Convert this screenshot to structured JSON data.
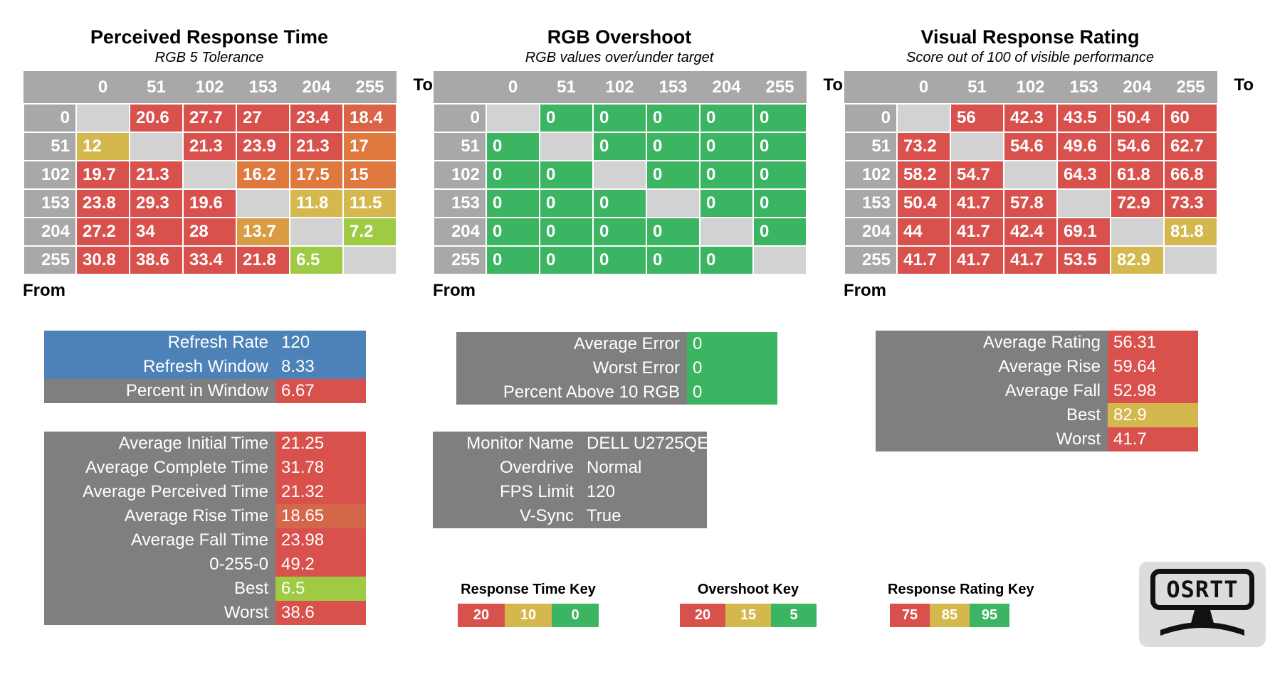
{
  "colors": {
    "red": "#d8514d",
    "redOrange": "#da6348",
    "orange": "#e0793e",
    "orangeGold": "#d99c44",
    "gold": "#d5b84d",
    "yellowGreen": "#9ecb43",
    "green": "#3cb563",
    "blue": "#4d82b8",
    "box_gray": "#7f7f7f",
    "header_gray": "#a8a8a8",
    "diag_gray": "#d2d2d2",
    "rise_red": "#d4664a"
  },
  "chart_data": [
    {
      "type": "heatmap",
      "title": "Perceived Response Time",
      "subtitle": "RGB 5 Tolerance",
      "to_label": "To",
      "from_label": "From",
      "categories": [
        "0",
        "51",
        "102",
        "153",
        "204",
        "255"
      ],
      "values": [
        [
          null,
          20.6,
          27.7,
          27,
          23.4,
          18.4
        ],
        [
          12,
          null,
          21.3,
          23.9,
          21.3,
          17
        ],
        [
          19.7,
          21.3,
          null,
          16.2,
          17.5,
          15
        ],
        [
          23.8,
          29.3,
          19.6,
          null,
          11.8,
          11.5
        ],
        [
          27.2,
          34,
          28,
          13.7,
          null,
          7.2
        ],
        [
          30.8,
          38.6,
          33.4,
          21.8,
          6.5,
          null
        ]
      ],
      "cell_colors": [
        [
          null,
          "red",
          "red",
          "red",
          "red",
          "redOrange"
        ],
        [
          "gold",
          null,
          "red",
          "red",
          "red",
          "orange"
        ],
        [
          "red",
          "red",
          null,
          "orange",
          "orange",
          "orange"
        ],
        [
          "red",
          "red",
          "red",
          null,
          "gold",
          "gold"
        ],
        [
          "red",
          "red",
          "red",
          "orangeGold",
          null,
          "yellowGreen"
        ],
        [
          "red",
          "red",
          "red",
          "red",
          "yellowGreen",
          null
        ]
      ]
    },
    {
      "type": "heatmap",
      "title": "RGB Overshoot",
      "subtitle": "RGB values over/under target",
      "to_label": "To",
      "from_label": "From",
      "categories": [
        "0",
        "51",
        "102",
        "153",
        "204",
        "255"
      ],
      "values": [
        [
          null,
          0,
          0,
          0,
          0,
          0
        ],
        [
          0,
          null,
          0,
          0,
          0,
          0
        ],
        [
          0,
          0,
          null,
          0,
          0,
          0
        ],
        [
          0,
          0,
          0,
          null,
          0,
          0
        ],
        [
          0,
          0,
          0,
          0,
          null,
          0
        ],
        [
          0,
          0,
          0,
          0,
          0,
          null
        ]
      ],
      "cell_colors": [
        [
          null,
          "green",
          "green",
          "green",
          "green",
          "green"
        ],
        [
          "green",
          null,
          "green",
          "green",
          "green",
          "green"
        ],
        [
          "green",
          "green",
          null,
          "green",
          "green",
          "green"
        ],
        [
          "green",
          "green",
          "green",
          null,
          "green",
          "green"
        ],
        [
          "green",
          "green",
          "green",
          "green",
          null,
          "green"
        ],
        [
          "green",
          "green",
          "green",
          "green",
          "green",
          null
        ]
      ]
    },
    {
      "type": "heatmap",
      "title": "Visual Response Rating",
      "subtitle": "Score out of 100 of visible performance",
      "to_label": "To",
      "from_label": "From",
      "categories": [
        "0",
        "51",
        "102",
        "153",
        "204",
        "255"
      ],
      "values": [
        [
          null,
          56,
          42.3,
          43.5,
          50.4,
          60
        ],
        [
          73.2,
          null,
          54.6,
          49.6,
          54.6,
          62.7
        ],
        [
          58.2,
          54.7,
          null,
          64.3,
          61.8,
          66.8
        ],
        [
          50.4,
          41.7,
          57.8,
          null,
          72.9,
          73.3
        ],
        [
          44,
          41.7,
          42.4,
          69.1,
          null,
          81.8
        ],
        [
          41.7,
          41.7,
          41.7,
          53.5,
          82.9,
          null
        ]
      ],
      "cell_colors": [
        [
          null,
          "red",
          "red",
          "red",
          "red",
          "red"
        ],
        [
          "red",
          null,
          "red",
          "red",
          "red",
          "red"
        ],
        [
          "red",
          "red",
          null,
          "red",
          "red",
          "red"
        ],
        [
          "red",
          "red",
          "red",
          null,
          "red",
          "red"
        ],
        [
          "red",
          "red",
          "red",
          "red",
          null,
          "gold"
        ],
        [
          "red",
          "red",
          "red",
          "red",
          "gold",
          null
        ]
      ]
    }
  ],
  "summary_boxes": {
    "performance": {
      "rows": [
        {
          "label": "Refresh Rate",
          "value": "120",
          "label_bg": "blue",
          "value_bg": "blue"
        },
        {
          "label": "Refresh Window",
          "value": "8.33",
          "label_bg": "blue",
          "value_bg": "blue"
        },
        {
          "label": "Percent in Window",
          "value": "6.67",
          "label_bg": "box_gray",
          "value_bg": "red"
        }
      ]
    },
    "times": {
      "rows": [
        {
          "label": "Average Initial Time",
          "value": "21.25",
          "label_bg": "box_gray",
          "value_bg": "red"
        },
        {
          "label": "Average Complete Time",
          "value": "31.78",
          "label_bg": "box_gray",
          "value_bg": "red"
        },
        {
          "label": "Average Perceived Time",
          "value": "21.32",
          "label_bg": "box_gray",
          "value_bg": "red"
        },
        {
          "label": "Average Rise Time",
          "value": "18.65",
          "label_bg": "box_gray",
          "value_bg": "rise_red"
        },
        {
          "label": "Average Fall Time",
          "value": "23.98",
          "label_bg": "box_gray",
          "value_bg": "red"
        },
        {
          "label": "0-255-0",
          "value": "49.2",
          "label_bg": "box_gray",
          "value_bg": "red"
        },
        {
          "label": "Best",
          "value": "6.5",
          "label_bg": "box_gray",
          "value_bg": "yellowGreen"
        },
        {
          "label": "Worst",
          "value": "38.6",
          "label_bg": "box_gray",
          "value_bg": "red"
        }
      ]
    },
    "overshoot": {
      "rows": [
        {
          "label": "Average Error",
          "value": "0",
          "label_bg": "box_gray",
          "value_bg": "green"
        },
        {
          "label": "Worst Error",
          "value": "0",
          "label_bg": "box_gray",
          "value_bg": "green"
        },
        {
          "label": "Percent Above 10 RGB",
          "value": "0",
          "label_bg": "box_gray",
          "value_bg": "green"
        }
      ]
    },
    "monitor": {
      "rows": [
        {
          "label": "Monitor Name",
          "value": "DELL U2725QE",
          "label_bg": "box_gray",
          "value_bg": "box_gray"
        },
        {
          "label": "Overdrive",
          "value": "Normal",
          "label_bg": "box_gray",
          "value_bg": "box_gray"
        },
        {
          "label": "FPS Limit",
          "value": "120",
          "label_bg": "box_gray",
          "value_bg": "box_gray"
        },
        {
          "label": "V-Sync",
          "value": "True",
          "label_bg": "box_gray",
          "value_bg": "box_gray"
        }
      ]
    },
    "rating": {
      "rows": [
        {
          "label": "Average Rating",
          "value": "56.31",
          "label_bg": "box_gray",
          "value_bg": "red"
        },
        {
          "label": "Average Rise",
          "value": "59.64",
          "label_bg": "box_gray",
          "value_bg": "red"
        },
        {
          "label": "Average Fall",
          "value": "52.98",
          "label_bg": "box_gray",
          "value_bg": "red"
        },
        {
          "label": "Best",
          "value": "82.9",
          "label_bg": "box_gray",
          "value_bg": "gold"
        },
        {
          "label": "Worst",
          "value": "41.7",
          "label_bg": "box_gray",
          "value_bg": "red"
        }
      ]
    }
  },
  "keys": [
    {
      "title": "Response Time Key",
      "cells": [
        {
          "value": "20",
          "bg": "red"
        },
        {
          "value": "10",
          "bg": "gold"
        },
        {
          "value": "0",
          "bg": "green"
        }
      ]
    },
    {
      "title": "Overshoot Key",
      "cells": [
        {
          "value": "20",
          "bg": "red"
        },
        {
          "value": "15",
          "bg": "gold"
        },
        {
          "value": "5",
          "bg": "green"
        }
      ]
    },
    {
      "title": "Response Rating Key",
      "cells": [
        {
          "value": "75",
          "bg": "red"
        },
        {
          "value": "85",
          "bg": "gold"
        },
        {
          "value": "95",
          "bg": "green"
        }
      ]
    }
  ],
  "logo": {
    "text": "OSRTT"
  }
}
